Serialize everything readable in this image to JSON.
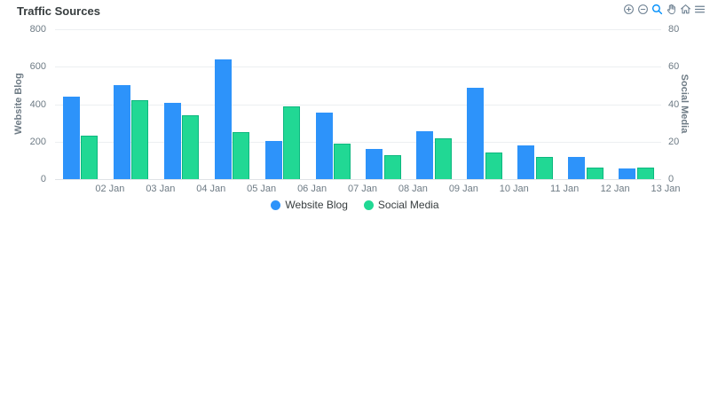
{
  "header": {
    "title": "Traffic Sources"
  },
  "toolbar": {
    "icons": [
      {
        "name": "zoom-in-icon",
        "active": false
      },
      {
        "name": "zoom-out-icon",
        "active": false
      },
      {
        "name": "selection-zoom-icon",
        "active": true
      },
      {
        "name": "pan-icon",
        "active": false
      },
      {
        "name": "home-icon",
        "active": false
      },
      {
        "name": "menu-icon",
        "active": false
      }
    ],
    "icon_color": "#6E8192",
    "active_icon_color": "#008FFB"
  },
  "chart_data": {
    "type": "bar",
    "title": "Traffic Sources",
    "x_tick_labels": [
      "02 Jan",
      "03 Jan",
      "04 Jan",
      "05 Jan",
      "06 Jan",
      "07 Jan",
      "08 Jan",
      "09 Jan",
      "10 Jan",
      "11 Jan",
      "12 Jan",
      "13 Jan"
    ],
    "series": [
      {
        "name": "Website Blog",
        "axis": "left",
        "color": "#2D93FA",
        "stroke": "",
        "values": [
          440,
          500,
          405,
          640,
          205,
          355,
          160,
          255,
          490,
          180,
          120,
          55
        ]
      },
      {
        "name": "Social Media",
        "axis": "right",
        "color": "#21D894",
        "stroke": "#0DB77F",
        "values": [
          23,
          42,
          34,
          25,
          39,
          19,
          13,
          22,
          14,
          12,
          6,
          6
        ]
      }
    ],
    "left_axis": {
      "label": "Website Blog",
      "min": 0,
      "max": 800,
      "ticks": [
        0,
        200,
        400,
        600,
        800
      ]
    },
    "right_axis": {
      "label": "Social Media",
      "min": 0,
      "max": 80,
      "ticks": [
        0,
        20,
        40,
        60,
        80
      ]
    },
    "legend": {
      "position": "bottom",
      "entries": [
        "Website Blog",
        "Social Media"
      ]
    },
    "grid": "horizontal"
  }
}
